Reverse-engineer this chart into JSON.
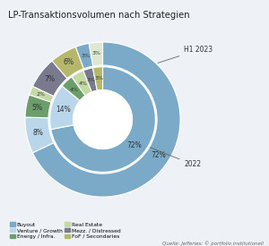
{
  "title": "LP-Transaktionsvolumen nach Strategien",
  "source": "Quelle: Jefferies; © portfolio institutionell",
  "outer_ring": {
    "label": "H1 2023",
    "values": [
      72,
      8,
      5,
      2,
      7,
      6,
      3,
      3
    ],
    "colors": [
      "#7aaac8",
      "#bad6ea",
      "#6b9e6b",
      "#c5d9a5",
      "#7a7a8e",
      "#b5b86a",
      "#7aaac8",
      "#dde8d0"
    ],
    "labels": [
      "72%",
      "8%",
      "5%",
      "2%",
      "7%",
      "6%",
      "3%",
      "3%"
    ]
  },
  "inner_ring": {
    "label": "2022",
    "values": [
      72,
      14,
      4,
      4,
      3,
      3
    ],
    "colors": [
      "#7aaac8",
      "#bad6ea",
      "#6b9e6b",
      "#c5d9a5",
      "#7a7a8e",
      "#b5b86a"
    ],
    "labels": [
      "72%",
      "14%",
      "4%",
      "4%",
      "3%",
      "3%"
    ]
  },
  "legend_items": [
    {
      "label": "Buyout",
      "color": "#7aaac8"
    },
    {
      "label": "Venture / Growth",
      "color": "#bad6ea"
    },
    {
      "label": "Energy / Infra.",
      "color": "#6b9e6b"
    },
    {
      "label": "Real Estate",
      "color": "#c5d9a5"
    },
    {
      "label": "Mezz. / Distressed",
      "color": "#7a7a8e"
    },
    {
      "label": "FoF / Secondaries",
      "color": "#b5b86a"
    }
  ],
  "background_color": "#eef2f7",
  "startangle": 90
}
